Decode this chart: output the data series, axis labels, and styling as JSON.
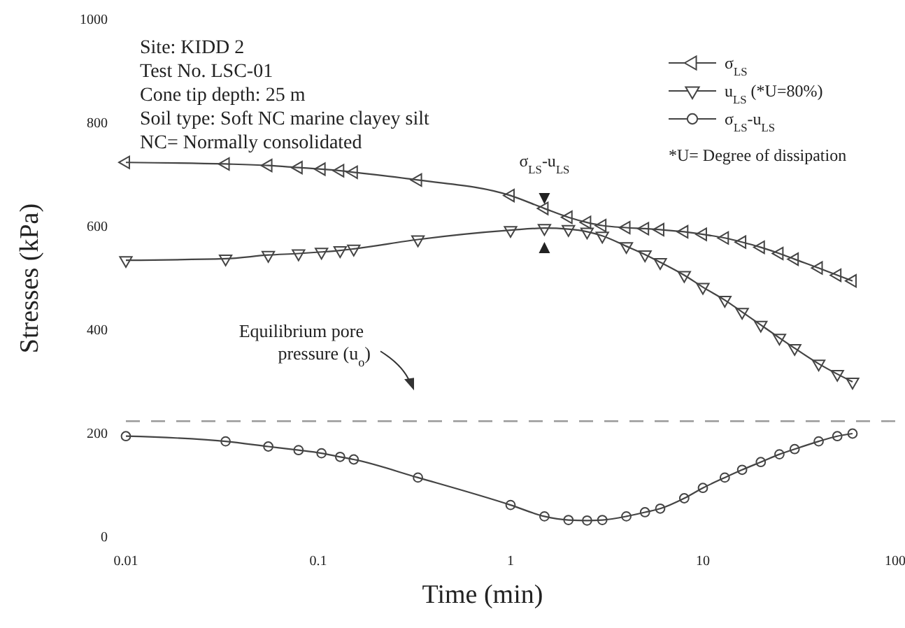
{
  "chart_data": {
    "type": "line",
    "xlabel": "Time (min)",
    "ylabel": "Stresses (kPa)",
    "log": "x",
    "xlim": [
      0.01,
      100
    ],
    "xticks": [
      0.01,
      0.1,
      1,
      10,
      100
    ],
    "ylim": [
      0,
      1000
    ],
    "yticks": [
      0,
      200,
      400,
      600,
      800,
      1000
    ],
    "grid": false,
    "legend": "top right",
    "x": [
      0.01,
      0.033,
      0.055,
      0.079,
      0.104,
      0.13,
      0.153,
      0.33,
      1,
      1.5,
      2,
      2.5,
      3,
      4,
      5,
      6,
      8,
      10,
      13,
      16,
      20,
      25,
      30,
      40,
      50,
      60
    ],
    "series": [
      {
        "name": "σ$_{LS}$",
        "color": "#444444",
        "marker": "triangle-left",
        "values": [
          724,
          721,
          718,
          714,
          711,
          708,
          705,
          690,
          660,
          635,
          618,
          608,
          602,
          598,
          596,
          594,
          590,
          585,
          578,
          570,
          560,
          548,
          537,
          520,
          506,
          495
        ]
      },
      {
        "name": "u$_{LS}$ (*U=80%)",
        "color": "#444444",
        "marker": "triangle-down",
        "values": [
          535,
          538,
          545,
          548,
          551,
          554,
          557,
          575,
          593,
          597,
          595,
          590,
          582,
          562,
          546,
          531,
          506,
          483,
          458,
          435,
          410,
          385,
          365,
          335,
          315,
          300
        ]
      },
      {
        "name": "σ$_{LS}$-u$_{LS}$",
        "color": "#444444",
        "marker": "circle",
        "values": [
          195,
          185,
          175,
          168,
          162,
          155,
          150,
          115,
          62,
          40,
          33,
          32,
          33,
          40,
          48,
          55,
          75,
          95,
          115,
          130,
          145,
          160,
          170,
          185,
          195,
          200
        ]
      }
    ],
    "ref_lines": [
      {
        "axis": "y",
        "value": 224,
        "label": "Equilibrium pore pressure (u$_{o}$)",
        "line_style": "dashed",
        "color": "#999999"
      }
    ],
    "annotations": [
      "Site: KIDD 2",
      "Test No. LSC-01",
      "Cone tip depth: 25 m",
      "Soil type: Soft NC marine clayey silt",
      "NC= Normally consolidated",
      "*U= Degree of dissipation",
      {
        "text": "σ$_{LS}$-u$_{LS}$",
        "x": 1.5,
        "y": 635
      }
    ]
  }
}
